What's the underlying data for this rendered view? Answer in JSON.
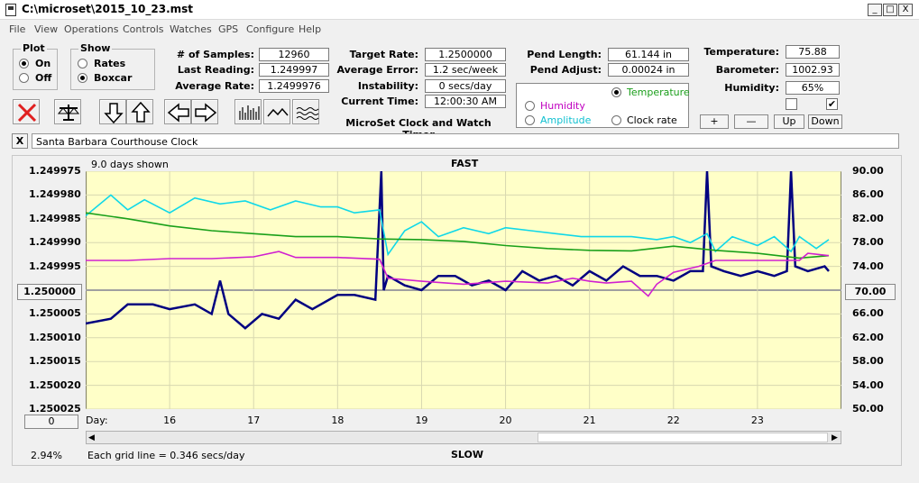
{
  "window": {
    "title": "C:\\microset\\2015_10_23.mst",
    "min": "_",
    "max": "□",
    "close": "X"
  },
  "menu": [
    "File",
    "View",
    "Operations",
    "Controls",
    "Watches",
    "GPS",
    "Configure",
    "Help"
  ],
  "plot": {
    "title": "Plot",
    "on": "On",
    "off": "Off",
    "selected": "On"
  },
  "show": {
    "title": "Show",
    "rates": "Rates",
    "boxcar": "Boxcar",
    "selected": "Boxcar"
  },
  "stats1": {
    "samples_label": "# of Samples:",
    "samples": "12960",
    "last_label": "Last Reading:",
    "last": "1.249997",
    "avg_label": "Average Rate:",
    "avg": "1.2499976"
  },
  "stats2": {
    "target_label": "Target Rate:",
    "target": "1.2500000",
    "error_label": "Average Error:",
    "error": "1.2 sec/week",
    "instab_label": "Instability:",
    "instab": "0 secs/day",
    "time_label": "Current Time:",
    "time": "12:00:30 AM",
    "app_name": "MicroSet Clock and Watch Timer"
  },
  "pend": {
    "length_label": "Pend Length:",
    "length": "61.144 in",
    "adjust_label": "Pend Adjust:",
    "adjust": "0.00024 in"
  },
  "series_select": {
    "temperature": "Temperature",
    "humidity": "Humidity",
    "amplitude": "Amplitude",
    "clock_rate": "Clock rate",
    "selected": "Temperature",
    "colors": {
      "temperature": "#1a9e1a",
      "humidity": "#c000c0",
      "amplitude": "#10c0d0",
      "clock_rate": "#000000"
    }
  },
  "env": {
    "temp_label": "Temperature:",
    "temp": "75.88",
    "baro_label": "Barometer:",
    "baro": "1002.93",
    "hum_label": "Humidity:",
    "hum": "65%",
    "cb_left": false,
    "cb_right": true,
    "plus": "+",
    "minus": "—",
    "up": "Up",
    "down": "Down"
  },
  "watch": {
    "close": "X",
    "name": "Santa Barbara Courthouse Clock"
  },
  "chart_header": {
    "days_shown": "9.0 days shown",
    "fast": "FAST",
    "slow": "SLOW",
    "day_label": "Day:"
  },
  "left_box": "1.250000",
  "right_box": "70.00",
  "bottom_box": "0",
  "percent": "2.94%",
  "grid_note": "Each grid line = 0.346 secs/day",
  "chart_data": {
    "type": "line",
    "plot_bg": "#ffffc8",
    "y_left_ticks": [
      "1.249975",
      "1.249980",
      "1.249985",
      "1.249990",
      "1.249995",
      "",
      "1.250005",
      "1.250010",
      "1.250015",
      "1.250020",
      "1.250025"
    ],
    "y_right_ticks": [
      "90.00",
      "86.00",
      "82.00",
      "78.00",
      "74.00",
      "",
      "66.00",
      "62.00",
      "58.00",
      "54.00",
      "50.00"
    ],
    "x_ticks": [
      "16",
      "17",
      "18",
      "19",
      "20",
      "21",
      "22",
      "23"
    ],
    "x_range_days": [
      15.0,
      24.0
    ],
    "y_left_range": [
      1.249975,
      1.250025
    ],
    "y_right_range": [
      50,
      90
    ],
    "series": [
      {
        "color": "#000080",
        "x": [
          15.0,
          15.3,
          15.5,
          15.8,
          16.0,
          16.3,
          16.5,
          16.6,
          16.7,
          16.9,
          17.1,
          17.3,
          17.5,
          17.7,
          18.0,
          18.2,
          18.45,
          18.52,
          18.55,
          18.6,
          18.8,
          19.0,
          19.2,
          19.4,
          19.6,
          19.8,
          20.0,
          20.2,
          20.4,
          20.6,
          20.8,
          21.0,
          21.2,
          21.4,
          21.6,
          21.8,
          22.0,
          22.2,
          22.35,
          22.4,
          22.45,
          22.6,
          22.8,
          23.0,
          23.2,
          23.35,
          23.4,
          23.45,
          23.6,
          23.8,
          23.85
        ],
        "y": [
          1.250007,
          1.250006,
          1.250003,
          1.250003,
          1.250004,
          1.250003,
          1.250005,
          1.249998,
          1.250005,
          1.250008,
          1.250005,
          1.250006,
          1.250002,
          1.250004,
          1.250001,
          1.250001,
          1.250002,
          1.249974,
          1.25,
          1.249997,
          1.249999,
          1.25,
          1.249997,
          1.249997,
          1.249999,
          1.249998,
          1.25,
          1.249996,
          1.249998,
          1.249997,
          1.249999,
          1.249996,
          1.249998,
          1.249995,
          1.249997,
          1.249997,
          1.249998,
          1.249996,
          1.249996,
          1.249974,
          1.249995,
          1.249996,
          1.249997,
          1.249996,
          1.249997,
          1.249996,
          1.249974,
          1.249995,
          1.249996,
          1.249995,
          1.249996
        ]
      },
      {
        "color": "#10d8e8",
        "x": [
          15.0,
          15.3,
          15.5,
          15.7,
          16.0,
          16.3,
          16.6,
          16.9,
          17.2,
          17.5,
          17.8,
          18.0,
          18.2,
          18.5,
          18.6,
          18.8,
          19.0,
          19.2,
          19.5,
          19.8,
          20.0,
          20.3,
          20.6,
          20.9,
          21.2,
          21.5,
          21.8,
          22.0,
          22.2,
          22.4,
          22.5,
          22.7,
          23.0,
          23.2,
          23.4,
          23.5,
          23.7,
          23.85
        ],
        "y": [
          82.5,
          86.0,
          83.5,
          85.2,
          83.0,
          85.5,
          84.5,
          85.0,
          83.5,
          85.0,
          84.0,
          84.0,
          83.0,
          83.5,
          76.0,
          80.0,
          81.5,
          79.0,
          80.5,
          79.5,
          80.5,
          80.0,
          79.5,
          79.0,
          79.0,
          79.0,
          78.5,
          79.0,
          78.0,
          79.5,
          76.5,
          79.0,
          77.5,
          79.0,
          76.5,
          79.0,
          77.0,
          78.5
        ]
      },
      {
        "color": "#1aa01a",
        "x": [
          15.0,
          15.5,
          16.0,
          16.5,
          17.0,
          17.5,
          18.0,
          18.5,
          19.0,
          19.5,
          20.0,
          20.5,
          21.0,
          21.5,
          22.0,
          22.5,
          23.0,
          23.5,
          23.85
        ],
        "y": [
          83.0,
          82.0,
          80.8,
          80.0,
          79.5,
          79.0,
          79.0,
          78.6,
          78.5,
          78.2,
          77.5,
          77.0,
          76.7,
          76.6,
          77.4,
          76.7,
          76.2,
          75.4,
          75.8
        ]
      },
      {
        "color": "#d020d0",
        "x": [
          15.0,
          15.5,
          16.0,
          16.5,
          17.0,
          17.3,
          17.5,
          18.0,
          18.5,
          18.6,
          19.0,
          19.5,
          20.0,
          20.5,
          20.8,
          21.0,
          21.2,
          21.5,
          21.7,
          21.8,
          22.0,
          22.3,
          22.5,
          23.0,
          23.5,
          23.6,
          23.85
        ],
        "y": [
          75.0,
          75.0,
          75.3,
          75.3,
          75.6,
          76.5,
          75.5,
          75.5,
          75.2,
          72.0,
          71.5,
          71.0,
          71.5,
          71.2,
          72.0,
          71.5,
          71.2,
          71.5,
          69.0,
          71.0,
          73.0,
          74.0,
          75.0,
          75.0,
          75.0,
          76.2,
          75.8
        ]
      }
    ]
  }
}
